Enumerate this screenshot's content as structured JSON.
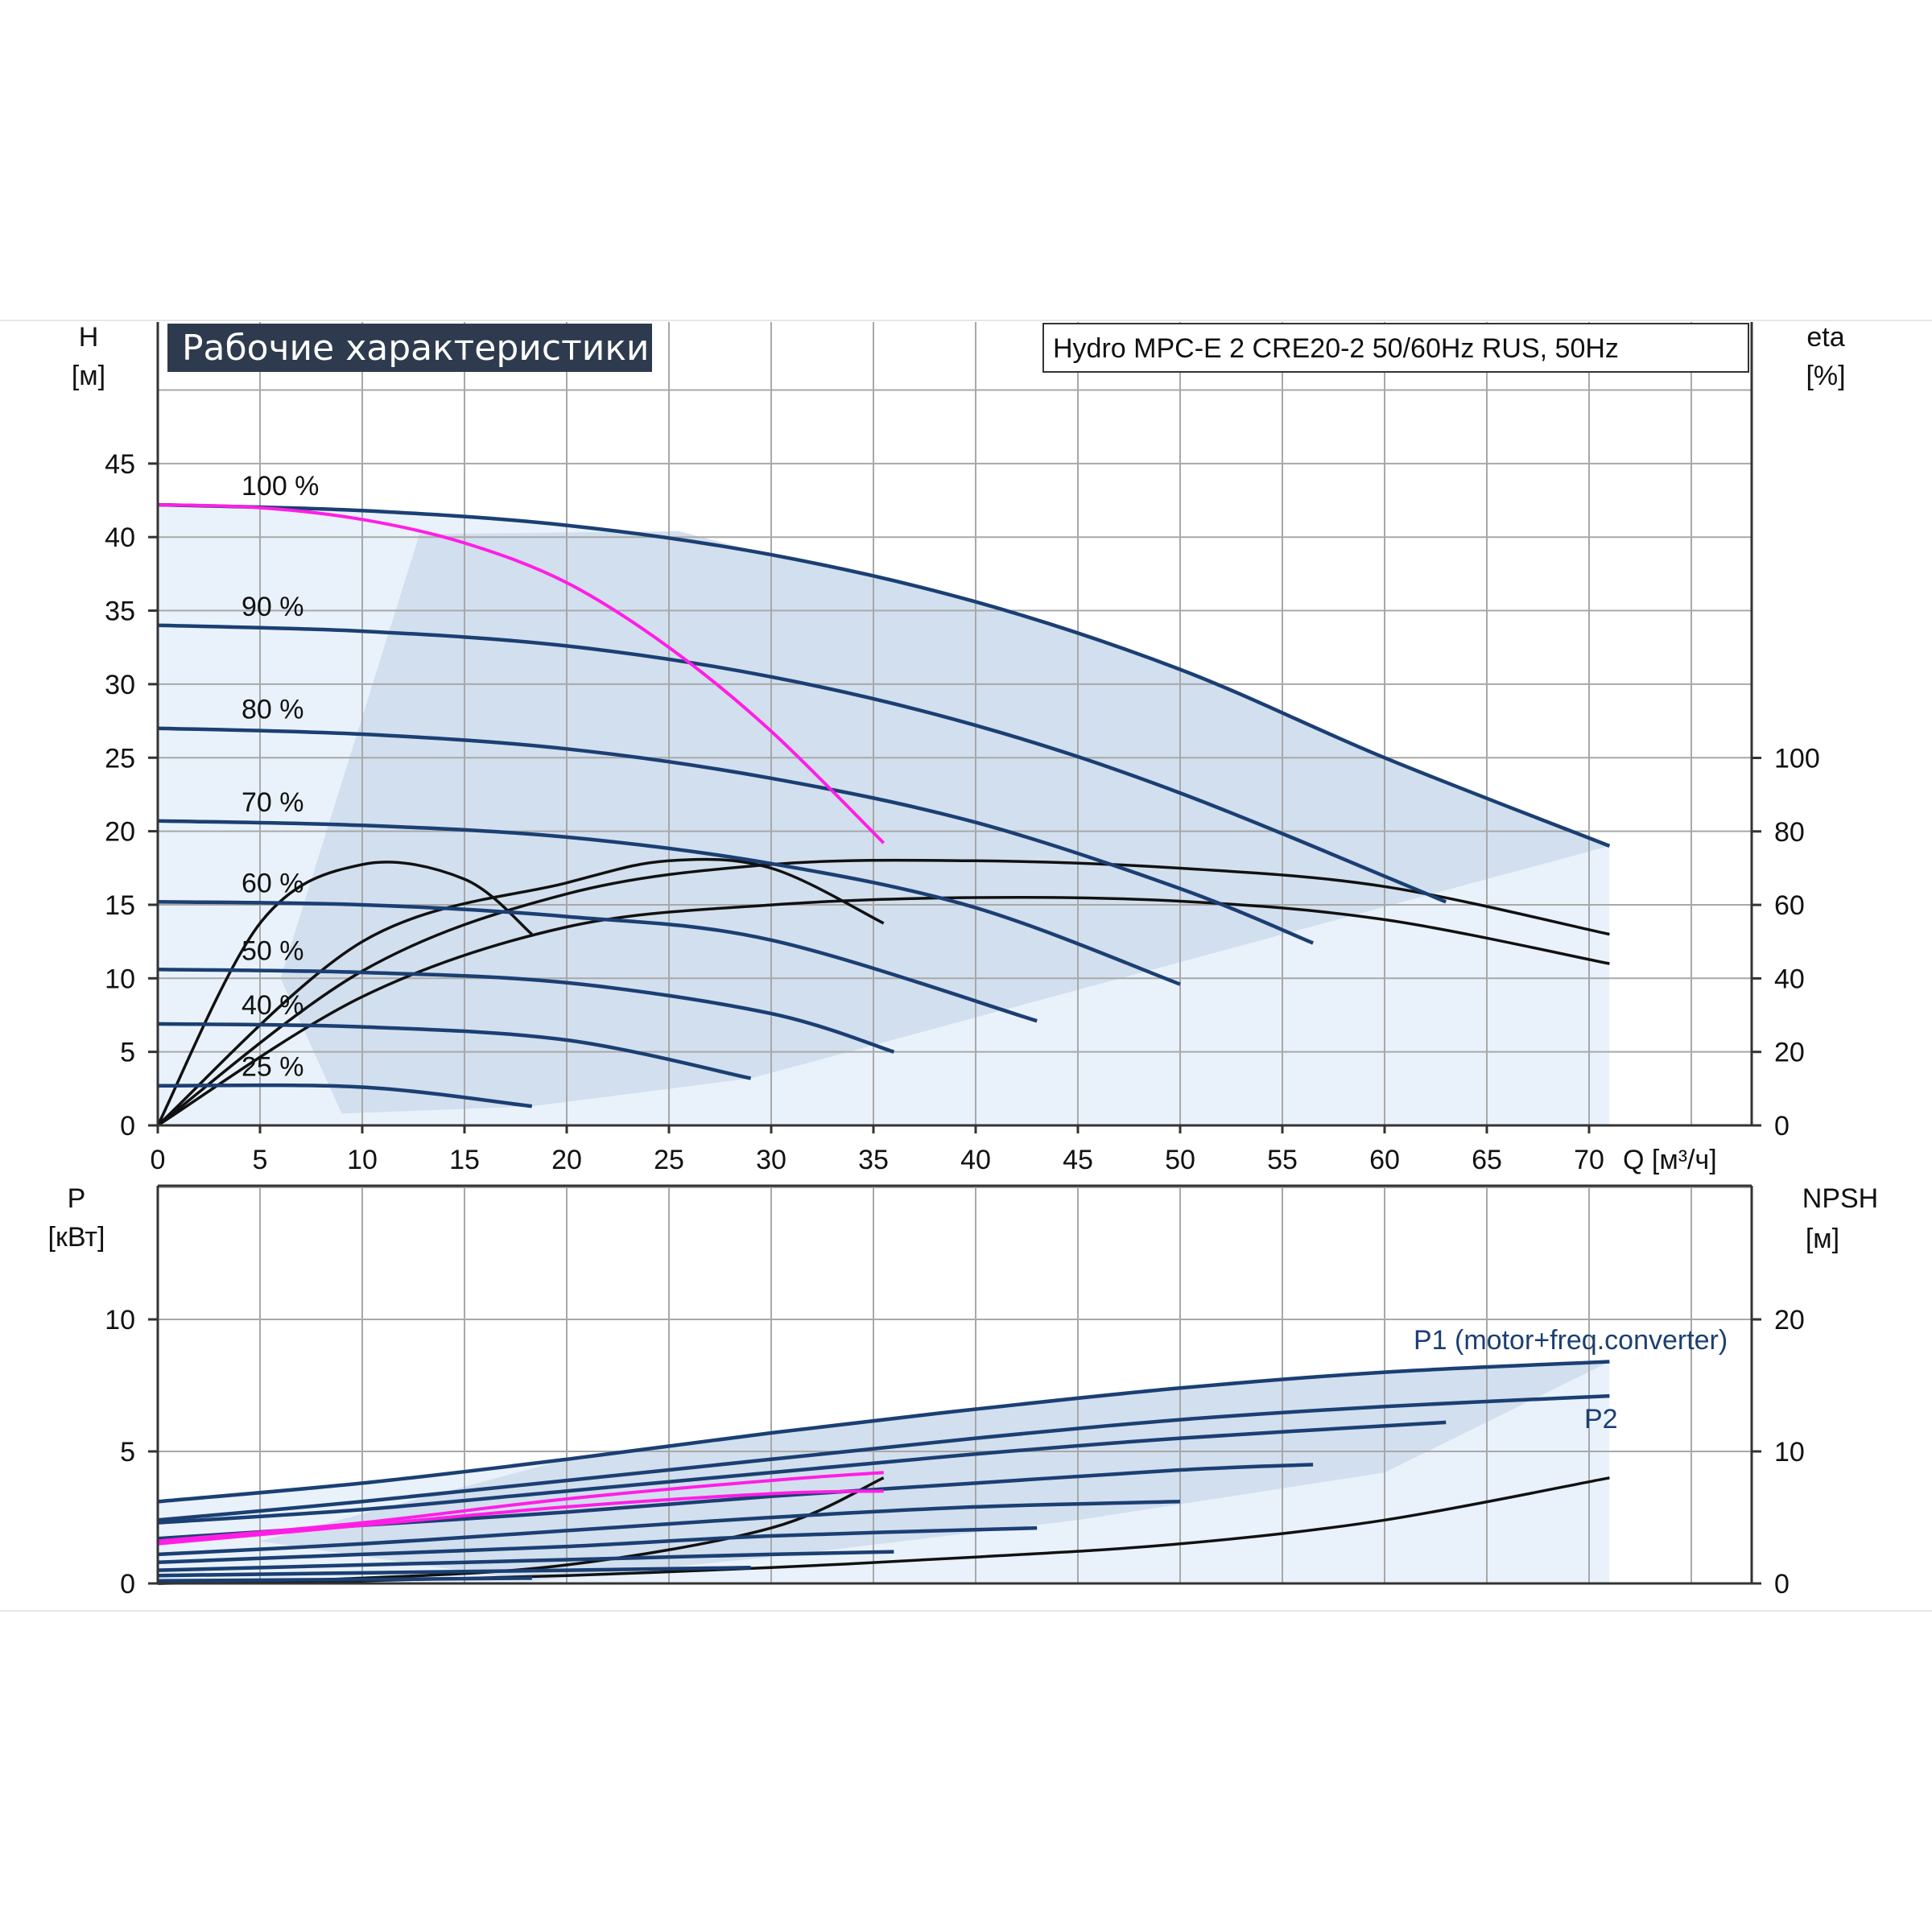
{
  "title": "Рабочие характеристики",
  "model": "Hydro MPC-E 2 CRE20-2 50/60Hz RUS, 50Hz",
  "colors": {
    "curve": "#1b3f73",
    "efficiency": "#111111",
    "highlight": "#ff1ee6",
    "region_light": "#e9f2fb",
    "region": "#cfddec",
    "grid": "#a8a8a8",
    "title_bg": "#2e3b4e"
  },
  "top_chart": {
    "y_label": "H",
    "y_unit": "[м]",
    "y2_label": "eta",
    "y2_unit": "[%]",
    "x_label": "Q [м³/ч]",
    "x_ticks": [
      "0",
      "5",
      "10",
      "15",
      "20",
      "25",
      "30",
      "35",
      "40",
      "45",
      "50",
      "55",
      "60",
      "65",
      "70"
    ],
    "y_ticks": [
      "0",
      "5",
      "10",
      "15",
      "20",
      "25",
      "30",
      "35",
      "40",
      "45"
    ],
    "y2_ticks": [
      "0",
      "20",
      "40",
      "60",
      "80",
      "100"
    ],
    "speed_labels": [
      "100 %",
      "90 %",
      "80 %",
      "70 %",
      "60 %",
      "50 %",
      "40 %",
      "25 %"
    ]
  },
  "bottom_chart": {
    "y_label": "P",
    "y_unit": "[кВт]",
    "y2_label": "NPSH",
    "y2_unit": "[м]",
    "y_ticks": [
      "0",
      "5",
      "10"
    ],
    "y2_ticks": [
      "0",
      "10",
      "20"
    ],
    "p1_label": "P1 (motor+freq.converter)",
    "p2_label": "P2"
  },
  "chart_data": [
    {
      "type": "line",
      "title": "Рабочие характеристики",
      "xlabel": "Q [м³/ч]",
      "ylabel": "H [м]",
      "y2label": "eta [%]",
      "xlim": [
        0,
        78
      ],
      "ylim": [
        0,
        45
      ],
      "y2lim": [
        0,
        100
      ],
      "grid": true,
      "series": [
        {
          "name": "100 %",
          "x": [
            0,
            10,
            20,
            30,
            40,
            50,
            60,
            71
          ],
          "values": [
            42.2,
            41.8,
            40.8,
            38.8,
            35.6,
            31.0,
            25.0,
            19.0
          ]
        },
        {
          "name": "90 %",
          "x": [
            0,
            10,
            20,
            30,
            40,
            50,
            63
          ],
          "values": [
            34.0,
            33.6,
            32.6,
            30.5,
            27.2,
            22.6,
            15.2
          ]
        },
        {
          "name": "80 %",
          "x": [
            0,
            10,
            20,
            30,
            40,
            50,
            56.5
          ],
          "values": [
            27.0,
            26.6,
            25.6,
            23.6,
            20.6,
            16.1,
            12.4
          ]
        },
        {
          "name": "70 %",
          "x": [
            0,
            10,
            20,
            30,
            40,
            50
          ],
          "values": [
            20.7,
            20.4,
            19.6,
            17.8,
            14.8,
            9.6
          ]
        },
        {
          "name": "60 %",
          "x": [
            0,
            10,
            20,
            30,
            43
          ],
          "values": [
            15.2,
            15.0,
            14.2,
            12.6,
            7.1
          ]
        },
        {
          "name": "50 %",
          "x": [
            0,
            10,
            20,
            30,
            36
          ],
          "values": [
            10.6,
            10.4,
            9.7,
            7.6,
            5.0
          ]
        },
        {
          "name": "40 %",
          "x": [
            0,
            10,
            20,
            29
          ],
          "values": [
            6.9,
            6.7,
            5.8,
            3.2
          ]
        },
        {
          "name": "25 %",
          "x": [
            0,
            10,
            18.3
          ],
          "values": [
            2.7,
            2.6,
            1.3
          ]
        },
        {
          "x": [
            0,
            5,
            10,
            15,
            20,
            25,
            30,
            35.5
          ],
          "values": [
            42.2,
            42.0,
            41.2,
            39.6,
            36.9,
            32.5,
            26.8,
            19.2
          ]
        }
      ],
      "efficiency_series": [
        {
          "x": [
            0,
            5,
            10,
            15,
            18.3
          ],
          "values": [
            0,
            55,
            71,
            67,
            52
          ]
        },
        {
          "x": [
            0,
            10,
            20,
            25,
            30,
            35.5
          ],
          "values": [
            0,
            50,
            66,
            72,
            70,
            55
          ]
        },
        {
          "x": [
            0,
            10,
            20,
            30,
            40,
            50,
            60,
            71
          ],
          "values": [
            0,
            35,
            54,
            60,
            62,
            61,
            56,
            44
          ]
        },
        {
          "x": [
            0,
            10,
            20,
            30,
            40,
            50,
            60,
            71
          ],
          "values": [
            0,
            42,
            63,
            71,
            72,
            70,
            65,
            52
          ]
        }
      ]
    },
    {
      "type": "line",
      "xlabel": "Q [м³/ч]",
      "ylabel": "P [кВт]",
      "y2label": "NPSH [м]",
      "xlim": [
        0,
        78
      ],
      "ylim": [
        0,
        15
      ],
      "y2lim": [
        0,
        30
      ],
      "grid": true,
      "series": [
        {
          "name": "P1 (motor+freq.converter)",
          "x": [
            0,
            10,
            20,
            30,
            40,
            50,
            60,
            71
          ],
          "values": [
            3.1,
            3.8,
            4.7,
            5.7,
            6.6,
            7.4,
            8.0,
            8.4
          ]
        },
        {
          "name": "P2",
          "x": [
            0,
            10,
            20,
            30,
            40,
            50,
            60,
            71
          ],
          "values": [
            2.4,
            3.1,
            3.9,
            4.7,
            5.5,
            6.2,
            6.7,
            7.1
          ]
        },
        {
          "x": [
            0,
            10,
            20,
            30,
            40,
            50,
            63
          ],
          "values": [
            2.3,
            2.8,
            3.5,
            4.2,
            4.9,
            5.5,
            6.1
          ]
        },
        {
          "x": [
            0,
            10,
            20,
            30,
            40,
            50,
            56.5
          ],
          "values": [
            1.7,
            2.2,
            2.7,
            3.3,
            3.8,
            4.3,
            4.5
          ]
        },
        {
          "x": [
            0,
            10,
            20,
            30,
            40,
            50
          ],
          "values": [
            1.1,
            1.5,
            2.0,
            2.5,
            2.9,
            3.1
          ]
        },
        {
          "x": [
            0,
            10,
            20,
            30,
            43
          ],
          "values": [
            0.8,
            1.1,
            1.4,
            1.8,
            2.1
          ]
        },
        {
          "x": [
            0,
            10,
            20,
            30,
            36
          ],
          "values": [
            0.5,
            0.7,
            0.9,
            1.1,
            1.2
          ]
        },
        {
          "x": [
            0,
            10,
            20,
            29
          ],
          "values": [
            0.3,
            0.4,
            0.5,
            0.6
          ]
        },
        {
          "x": [
            0,
            10,
            18.3
          ],
          "values": [
            0.1,
            0.15,
            0.2
          ]
        },
        {
          "x": [
            0,
            10,
            20,
            30,
            35.5
          ],
          "values": [
            1.6,
            2.3,
            3.2,
            3.9,
            4.2
          ]
        },
        {
          "x": [
            0,
            10,
            20,
            30,
            35.5
          ],
          "values": [
            1.5,
            2.2,
            2.9,
            3.4,
            3.5
          ]
        }
      ],
      "npsh_series": [
        {
          "x": [
            0,
            10,
            20,
            30,
            40,
            50,
            60,
            71
          ],
          "values": [
            0,
            0.2,
            0.6,
            1.2,
            2.0,
            3.0,
            4.8,
            8.0
          ]
        },
        {
          "x": [
            0,
            10,
            20,
            30,
            35.5
          ],
          "values": [
            0,
            0.4,
            1.4,
            4.2,
            8.0
          ]
        }
      ]
    }
  ]
}
